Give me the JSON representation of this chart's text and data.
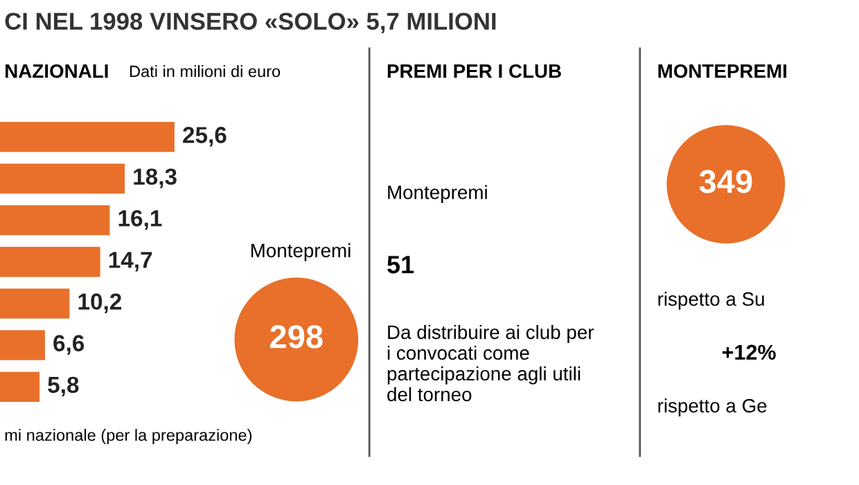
{
  "chart_data": [
    {
      "type": "bar",
      "orientation": "horizontal",
      "title": "CI NEL 1998 VINSERO «SOLO» 5,7 MILIONI",
      "subtitle": "NAZIONALI",
      "categories": [
        null,
        null,
        null,
        null,
        null,
        null,
        null
      ],
      "values": [
        25.6,
        18.3,
        16.1,
        14.7,
        10.2,
        6.6,
        5.8
      ],
      "value_labels": [
        "25,6",
        "18,3",
        "16,1",
        "14,7",
        "10,2",
        "6,6",
        "5,8"
      ],
      "color": "#e8702a",
      "grid": false,
      "annotations": [
        "Dati in milioni di euro",
        "Montepremi",
        "298",
        "mi nazionale (per la preparazione)"
      ]
    },
    {
      "type": "other",
      "title": "PREMI PER I CLUB",
      "annotations": [
        "Montepremi",
        "51",
        "Da distribuire ai club per i convocati come partecipazione agli utili del torneo"
      ]
    },
    {
      "type": "other",
      "title": "MONTEPREMI",
      "annotations": [
        "349",
        "rispetto a Su",
        "+12%",
        "rispetto a Ge"
      ]
    }
  ]
}
